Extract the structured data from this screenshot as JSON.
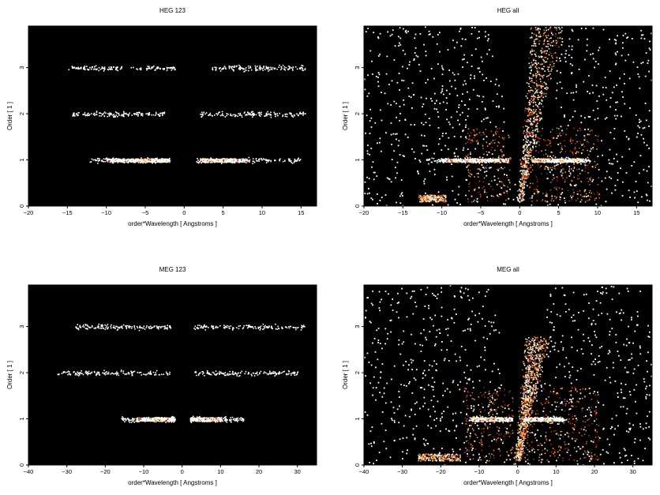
{
  "chart_data": [
    {
      "type": "heatmap",
      "title": "HEG 123",
      "xlabel": "order*Wavelength [ Angstroms ]",
      "ylabel": "Order [ 1 ]",
      "xlim": [
        -20,
        17
      ],
      "ylim": [
        0,
        3.9
      ],
      "xticks": [
        -20,
        -15,
        -10,
        -5,
        0,
        5,
        10,
        15
      ],
      "yticks": [
        0,
        1,
        2,
        3
      ],
      "bands": [
        {
          "order": 1,
          "x_ranges": [
            [
              -12.2,
              -1.7
            ],
            [
              1.5,
              15
            ]
          ],
          "dense_ranges": [
            [
              -10,
              -2
            ],
            [
              2,
              8
            ]
          ]
        },
        {
          "order": 2,
          "x_ranges": [
            [
              -14.5,
              -2.5
            ],
            [
              2,
              15.5
            ]
          ]
        },
        {
          "order": 3,
          "x_ranges": [
            [
              -15,
              -1.2
            ],
            [
              3.5,
              15.5
            ]
          ]
        }
      ],
      "cones": []
    },
    {
      "type": "heatmap",
      "title": "HEG all",
      "xlabel": "order*Wavelength [ Angstroms ]",
      "ylabel": "Order [ 1 ]",
      "xlim": [
        -20,
        17
      ],
      "ylim": [
        0,
        3.9
      ],
      "xticks": [
        -20,
        -15,
        -10,
        -5,
        0,
        5,
        10,
        15
      ],
      "yticks": [
        0,
        1,
        2,
        3
      ],
      "bands": [
        {
          "order": 1,
          "x_ranges": [
            [
              -12,
              -1.5
            ],
            [
              1.5,
              9
            ]
          ],
          "dense_ranges": [
            [
              -10,
              -1.5
            ],
            [
              1.5,
              8
            ]
          ]
        }
      ],
      "cones": [
        [
          -0.5,
          0.2,
          0.1,
          4.4
        ],
        [
          -13,
          -9.5,
          0.1,
          0.25
        ]
      ],
      "background_scatter": "sparse white points across panel"
    },
    {
      "type": "heatmap",
      "title": "MEG 123",
      "xlabel": "order*Wavelength [ Angstroms ]",
      "ylabel": "Order [ 1 ]",
      "xlim": [
        -40,
        35
      ],
      "ylim": [
        0,
        3.9
      ],
      "xticks": [
        -40,
        -30,
        -20,
        -10,
        0,
        10,
        20,
        30
      ],
      "yticks": [
        0,
        1,
        2,
        3
      ],
      "bands": [
        {
          "order": 1,
          "x_ranges": [
            [
              -16,
              -2
            ],
            [
              2,
              16
            ]
          ],
          "dense_ranges": [
            [
              -12,
              -2
            ],
            [
              2,
              10
            ]
          ]
        },
        {
          "order": 2,
          "x_ranges": [
            [
              -33,
              -3
            ],
            [
              3,
              30
            ]
          ]
        },
        {
          "order": 3,
          "x_ranges": [
            [
              -28,
              -3
            ],
            [
              3,
              32
            ]
          ]
        }
      ],
      "cones": []
    },
    {
      "type": "heatmap",
      "title": "MEG all",
      "xlabel": "order*Wavelength [ Angstroms ]",
      "ylabel": "Order [ 1 ]",
      "xlim": [
        -40,
        35
      ],
      "ylim": [
        0,
        3.9
      ],
      "xticks": [
        -40,
        -30,
        -20,
        -10,
        0,
        10,
        20,
        30
      ],
      "yticks": [
        0,
        1,
        2,
        3
      ],
      "bands": [
        {
          "order": 1,
          "x_ranges": [
            [
              -13,
              -1.5
            ],
            [
              1.5,
              12
            ]
          ],
          "dense_ranges": [
            [
              -12,
              -1.5
            ],
            [
              1.5,
              11
            ]
          ]
        }
      ],
      "cones": [
        [
          -1,
          0.5,
          0.1,
          2.8
        ],
        [
          -26,
          -15,
          0.1,
          0.25
        ]
      ],
      "background_scatter": "sparse white points across panel"
    }
  ]
}
